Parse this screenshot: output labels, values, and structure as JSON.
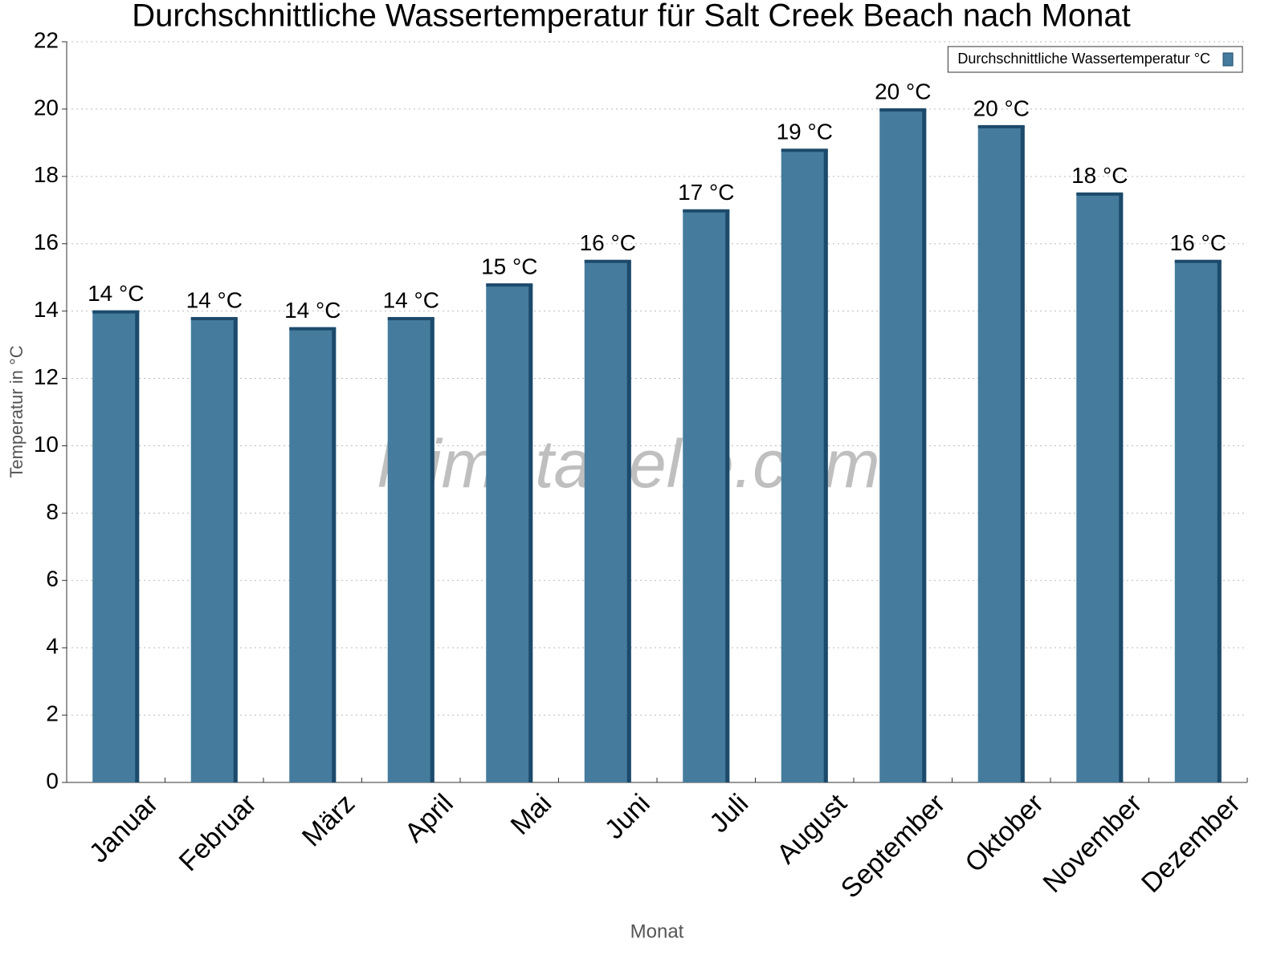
{
  "chart_data": {
    "type": "bar",
    "title": "Durchschnittliche Wassertemperatur für Salt Creek Beach nach Monat",
    "x_label": "Monat",
    "y_label": "Temperatur in °C",
    "watermark": "klimatabelle.com",
    "categories": [
      "Januar",
      "Februar",
      "März",
      "April",
      "Mai",
      "Juni",
      "Juli",
      "August",
      "September",
      "Oktober",
      "November",
      "Dezember"
    ],
    "series": [
      {
        "name": "Durchschnittliche Wassertemperatur °C",
        "color": "#457b9d",
        "values": [
          14.0,
          13.8,
          13.5,
          13.8,
          14.8,
          15.5,
          17.0,
          18.8,
          20.0,
          19.5,
          17.5,
          15.5
        ],
        "value_labels": [
          "14 °C",
          "14 °C",
          "14 °C",
          "14 °C",
          "15 °C",
          "16 °C",
          "17 °C",
          "19 °C",
          "20 °C",
          "20 °C",
          "18 °C",
          "16 °C"
        ]
      }
    ],
    "ylim": [
      0,
      22
    ],
    "yticks": [
      0,
      2,
      4,
      6,
      8,
      10,
      12,
      14,
      16,
      18,
      20,
      22
    ],
    "grid": true,
    "legend": "upper right"
  }
}
